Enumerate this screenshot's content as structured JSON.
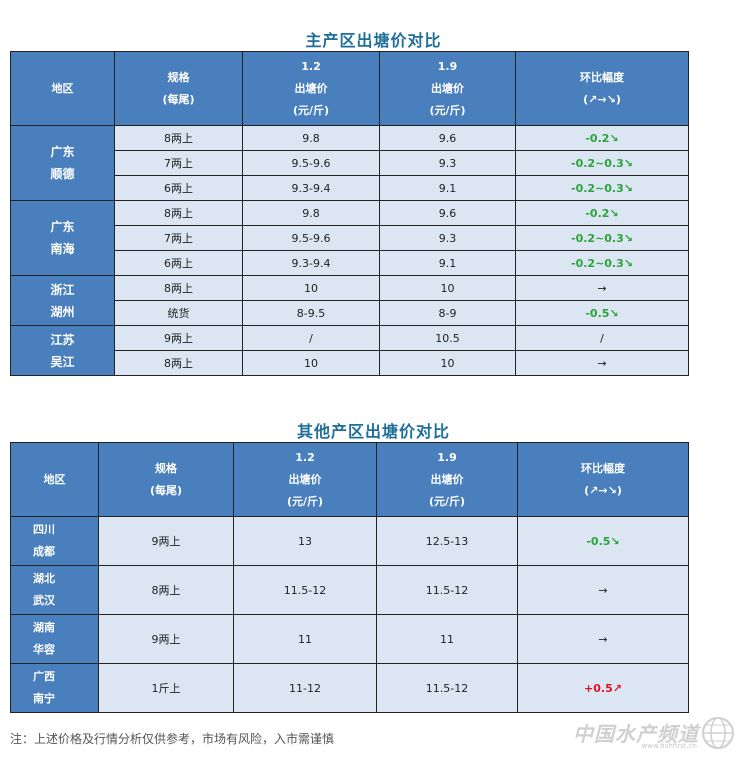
{
  "table1": {
    "title": "主产区出塘价对比",
    "headers": {
      "region": "地区",
      "spec_line1": "规格",
      "spec_line2": "(每尾)",
      "date1": "1.2",
      "date2": "1.9",
      "price": "出塘价",
      "unit": "(元/斤)",
      "change": "环比幅度",
      "change_sub": "(↗→↘)"
    },
    "groups": [
      {
        "region_line1": "广东",
        "region_line2": "顺德",
        "rows": [
          {
            "spec": "8两上",
            "p1": "9.8",
            "p2": "9.6",
            "change": "-0.2↘",
            "trend": "down"
          },
          {
            "spec": "7两上",
            "p1": "9.5-9.6",
            "p2": "9.3",
            "change": "-0.2~0.3↘",
            "trend": "down"
          },
          {
            "spec": "6两上",
            "p1": "9.3-9.4",
            "p2": "9.1",
            "change": "-0.2~0.3↘",
            "trend": "down"
          }
        ]
      },
      {
        "region_line1": "广东",
        "region_line2": "南海",
        "rows": [
          {
            "spec": "8两上",
            "p1": "9.8",
            "p2": "9.6",
            "change": "-0.2↘",
            "trend": "down"
          },
          {
            "spec": "7两上",
            "p1": "9.5-9.6",
            "p2": "9.3",
            "change": "-0.2~0.3↘",
            "trend": "down"
          },
          {
            "spec": "6两上",
            "p1": "9.3-9.4",
            "p2": "9.1",
            "change": "-0.2~0.3↘",
            "trend": "down"
          }
        ]
      },
      {
        "region_line1": "浙江",
        "region_line2": "湖州",
        "rows": [
          {
            "spec": "8两上",
            "p1": "10",
            "p2": "10",
            "change": "→",
            "trend": "flat"
          },
          {
            "spec": "统货",
            "p1": "8-9.5",
            "p2": "8-9",
            "change": "-0.5↘",
            "trend": "down"
          }
        ]
      },
      {
        "region_line1": "江苏",
        "region_line2": "吴江",
        "rows": [
          {
            "spec": "9两上",
            "p1": "/",
            "p2": "10.5",
            "change": "/",
            "trend": "flat"
          },
          {
            "spec": "8两上",
            "p1": "10",
            "p2": "10",
            "change": "→",
            "trend": "flat"
          }
        ]
      }
    ]
  },
  "table2": {
    "title": "其他产区出塘价对比",
    "headers": {
      "region": "地区",
      "spec_line1": "规格",
      "spec_line2": "(每尾)",
      "date1": "1.2",
      "date2": "1.9",
      "price": "出塘价",
      "unit": "(元/斤)",
      "change": "环比幅度",
      "change_sub": "(↗→↘)"
    },
    "rows": [
      {
        "region_line1": "四川",
        "region_line2": "成都",
        "spec": "9两上",
        "p1": "13",
        "p2": "12.5-13",
        "change": "-0.5↘",
        "trend": "down"
      },
      {
        "region_line1": "湖北",
        "region_line2": "武汉",
        "spec": "8两上",
        "p1": "11.5-12",
        "p2": "11.5-12",
        "change": "→",
        "trend": "flat"
      },
      {
        "region_line1": "湖南",
        "region_line2": "华容",
        "spec": "9两上",
        "p1": "11",
        "p2": "11",
        "change": "→",
        "trend": "flat"
      },
      {
        "region_line1": "广西",
        "region_line2": "南宁",
        "spec": "1斤上",
        "p1": "11-12",
        "p2": "11.5-12",
        "change": "+0.5↗",
        "trend": "up"
      }
    ]
  },
  "note": "注：上述价格及行情分析仅供参考，市场有风险，入市需谨慎",
  "watermark": {
    "text": "中国水产频道",
    "sub": "www.fishfirst.cn",
    "icon": "globe-icon"
  },
  "colors": {
    "header_bg": "#4a7fbd",
    "cell_bg": "#dce6f2",
    "title": "#1f6f9a",
    "down": "#2aa33a",
    "up": "#e0102a"
  }
}
